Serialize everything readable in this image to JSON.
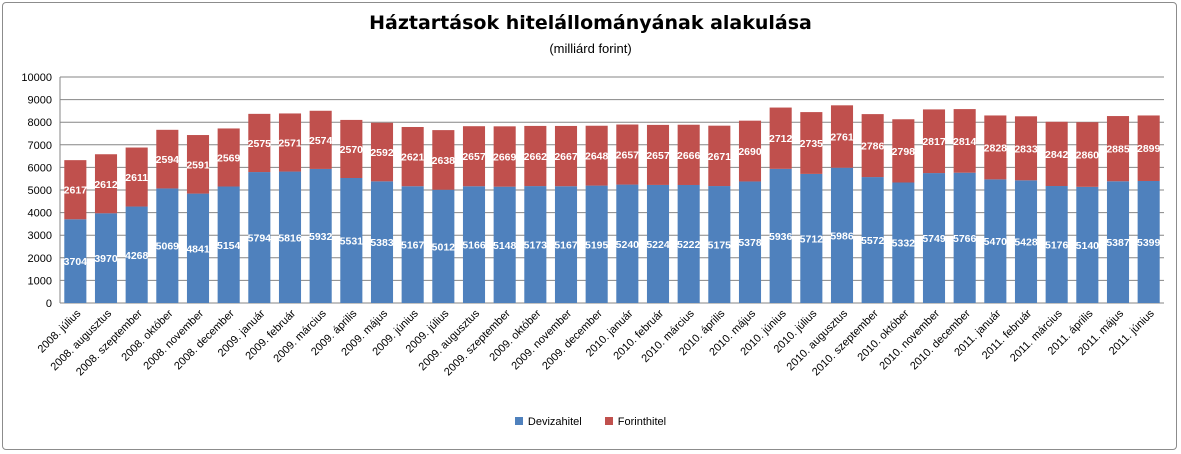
{
  "colors": {
    "devizahitel": "#4f81bd",
    "forinthitel": "#c0504d",
    "grid": "#868686",
    "axis": "#868686"
  },
  "chart_data": {
    "type": "bar",
    "stacked": true,
    "title": "Háztartások hitelállományának alakulása",
    "subtitle": "(milliárd forint)",
    "ylim": [
      0,
      10000
    ],
    "yticks": [
      0,
      1000,
      2000,
      3000,
      4000,
      5000,
      6000,
      7000,
      8000,
      9000,
      10000
    ],
    "grid": true,
    "legend": "bottom",
    "categories": [
      "2008. július",
      "2008. augusztus",
      "2008. szeptember",
      "2008. október",
      "2008. november",
      "2008. december",
      "2009. január",
      "2009. február",
      "2009. március",
      "2009. április",
      "2009. május",
      "2009. június",
      "2009. július",
      "2009. augusztus",
      "2009. szeptember",
      "2009. október",
      "2009. november",
      "2009. december",
      "2010. január",
      "2010. február",
      "2010. március",
      "2010. április",
      "2010. május",
      "2010. június",
      "2010. július",
      "2010. augusztus",
      "2010. szeptember",
      "2010. október",
      "2010. november",
      "2010. december",
      "2011. január",
      "2011. február",
      "2011. március",
      "2011. április",
      "2011. május",
      "2011. június"
    ],
    "series": [
      {
        "name": "Devizahitel",
        "values": [
          3704,
          3970,
          4268,
          5069,
          4841,
          5154,
          5794,
          5816,
          5932,
          5531,
          5383,
          5167,
          5012,
          5166,
          5148,
          5173,
          5167,
          5195,
          5240,
          5224,
          5222,
          5175,
          5378,
          5936,
          5712,
          5986,
          5572,
          5332,
          5749,
          5766,
          5470,
          5428,
          5176,
          5140,
          5387,
          5399
        ]
      },
      {
        "name": "Forinthitel",
        "values": [
          2617,
          2612,
          2611,
          2594,
          2591,
          2569,
          2575,
          2571,
          2574,
          2570,
          2592,
          2621,
          2638,
          2657,
          2669,
          2662,
          2667,
          2648,
          2657,
          2657,
          2666,
          2671,
          2690,
          2712,
          2735,
          2761,
          2786,
          2798,
          2817,
          2814,
          2828,
          2833,
          2842,
          2860,
          2885,
          2899
        ]
      }
    ]
  }
}
